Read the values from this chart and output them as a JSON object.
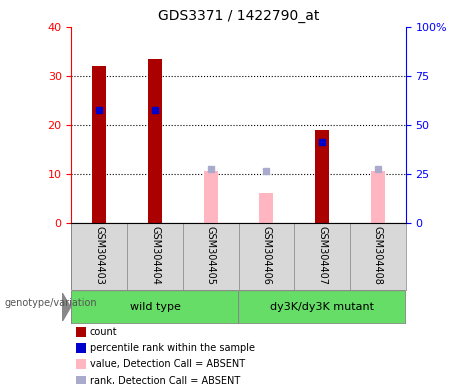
{
  "title": "GDS3371 / 1422790_at",
  "samples": [
    "GSM304403",
    "GSM304404",
    "GSM304405",
    "GSM304406",
    "GSM304407",
    "GSM304408"
  ],
  "count_values": [
    32,
    33.5,
    0,
    0,
    19,
    0
  ],
  "percentile_values": [
    23,
    23,
    0,
    0,
    16.5,
    0
  ],
  "absent_value_values": [
    0,
    0,
    10.5,
    6,
    0,
    10.5
  ],
  "absent_rank_values": [
    0,
    0,
    11,
    10.5,
    0,
    11
  ],
  "ylim": [
    0,
    40
  ],
  "yticks_left": [
    0,
    10,
    20,
    30,
    40
  ],
  "yticks_right": [
    0,
    25,
    50,
    75,
    100
  ],
  "count_color": "#AA0000",
  "percentile_color": "#0000CC",
  "absent_value_color": "#FFB6C1",
  "absent_rank_color": "#AAAACC",
  "bar_width": 0.25,
  "background_color": "#d8d8d8",
  "plot_bg": "#ffffff",
  "genotype_label": "genotype/variation",
  "wt_label": "wild type",
  "mut_label": "dy3K/dy3K mutant",
  "group_color": "#66DD66",
  "legend_items": [
    {
      "color": "#AA0000",
      "label": "count"
    },
    {
      "color": "#0000CC",
      "label": "percentile rank within the sample"
    },
    {
      "color": "#FFB6C1",
      "label": "value, Detection Call = ABSENT"
    },
    {
      "color": "#AAAACC",
      "label": "rank, Detection Call = ABSENT"
    }
  ]
}
